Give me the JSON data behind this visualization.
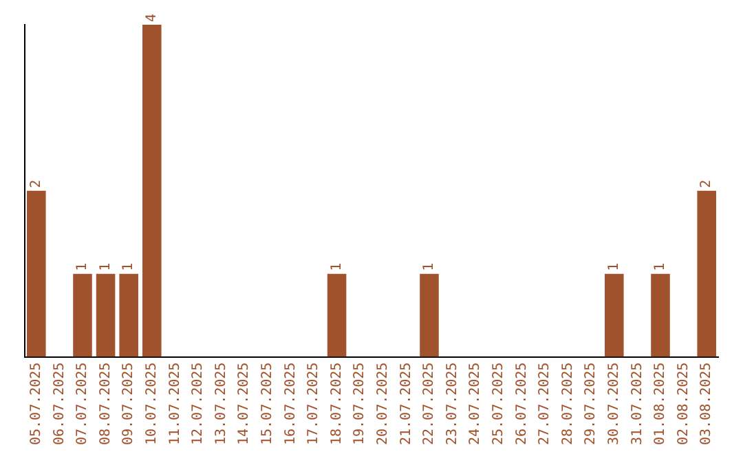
{
  "chart_data": {
    "type": "bar",
    "categories": [
      "05.07.2025",
      "06.07.2025",
      "07.07.2025",
      "08.07.2025",
      "09.07.2025",
      "10.07.2025",
      "11.07.2025",
      "12.07.2025",
      "13.07.2025",
      "14.07.2025",
      "15.07.2025",
      "16.07.2025",
      "17.07.2025",
      "18.07.2025",
      "19.07.2025",
      "20.07.2025",
      "21.07.2025",
      "22.07.2025",
      "23.07.2025",
      "24.07.2025",
      "25.07.2025",
      "26.07.2025",
      "27.07.2025",
      "28.07.2025",
      "29.07.2025",
      "30.07.2025",
      "31.07.2025",
      "01.08.2025",
      "02.08.2025",
      "03.08.2025"
    ],
    "values": [
      2,
      0,
      1,
      1,
      1,
      4,
      0,
      0,
      0,
      0,
      0,
      0,
      0,
      1,
      0,
      0,
      0,
      1,
      0,
      0,
      0,
      0,
      0,
      0,
      0,
      1,
      0,
      1,
      0,
      2
    ],
    "value_labels": [
      "2",
      null,
      "1",
      "1",
      "1",
      "4",
      null,
      null,
      null,
      null,
      null,
      null,
      null,
      "1",
      null,
      null,
      null,
      "1",
      null,
      null,
      null,
      null,
      null,
      null,
      null,
      "1",
      null,
      "1",
      null,
      "2"
    ],
    "color": "#a0522d",
    "grid": false,
    "legend": false,
    "tick_labels": "x"
  }
}
